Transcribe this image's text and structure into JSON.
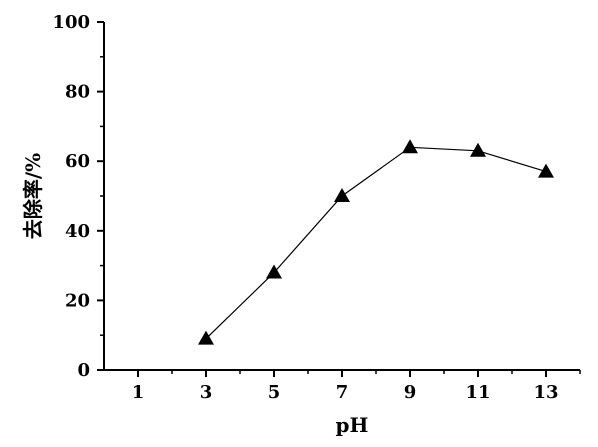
{
  "chart_data": {
    "type": "line",
    "title": "",
    "xlabel": "pH",
    "ylabel": "去除率/%",
    "x": [
      3,
      5,
      7,
      9,
      11,
      13
    ],
    "y": [
      9,
      28,
      50,
      64,
      63,
      57
    ],
    "xlim": [
      0,
      14
    ],
    "ylim": [
      0,
      100
    ],
    "x_ticks": [
      1,
      3,
      5,
      7,
      9,
      11,
      13
    ],
    "x_tick_labels": [
      "1",
      "3",
      "5",
      "7",
      "9",
      "11",
      "13"
    ],
    "y_ticks": [
      0,
      20,
      40,
      60,
      80,
      100
    ],
    "y_tick_labels": [
      "0",
      "20",
      "40",
      "60",
      "80",
      "100"
    ],
    "marker": "triangle",
    "grid": false,
    "legend": "none",
    "colors": {
      "line": "#000000",
      "marker": "#000000",
      "axis": "#000000"
    }
  }
}
